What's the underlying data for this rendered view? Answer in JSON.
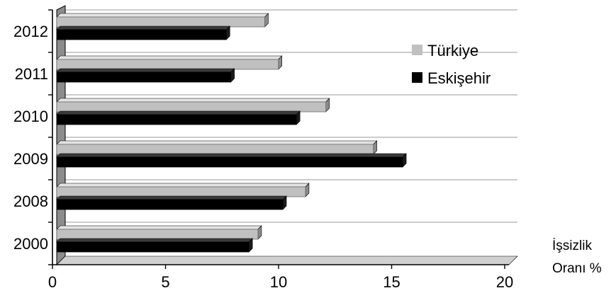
{
  "chart_data": {
    "type": "bar",
    "orientation": "horizontal",
    "categories": [
      "2012",
      "2011",
      "2010",
      "2009",
      "2008",
      "2000"
    ],
    "series": [
      {
        "name": "Türkiye",
        "color": "#c0c0c0",
        "values": [
          9.2,
          9.8,
          11.9,
          14.0,
          11.0,
          8.9
        ]
      },
      {
        "name": "Eskişehir",
        "color": "#000000",
        "values": [
          7.5,
          7.7,
          10.6,
          15.3,
          10.0,
          8.5
        ]
      }
    ],
    "xlim": [
      0,
      20
    ],
    "xticks": [
      0,
      5,
      10,
      15,
      20
    ],
    "xlabel_line1": "İşsizlik",
    "xlabel_line2": "Oranı %",
    "legend_position": "right",
    "grid": true
  }
}
